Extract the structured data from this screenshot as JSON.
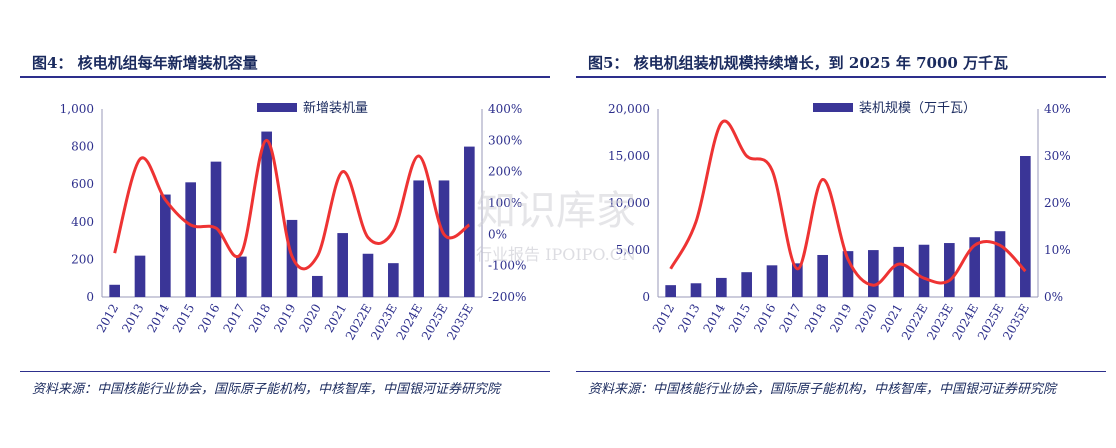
{
  "colors": {
    "bar": "#3a3597",
    "line": "#ee3333",
    "axis_text": "#2d2f8c",
    "title": "#1a2a5e"
  },
  "chart_data": [
    {
      "type": "bar",
      "title": "图4：  核电机组每年新增装机容量",
      "categories": [
        "2012",
        "2013",
        "2014",
        "2015",
        "2016",
        "2017",
        "2018",
        "2019",
        "2020",
        "2021",
        "2022E",
        "2023E",
        "2024E",
        "2025E",
        "2035E"
      ],
      "series": [
        {
          "name": "新增装机量",
          "type": "bar",
          "axis": "left",
          "values": [
            65,
            220,
            545,
            610,
            720,
            215,
            880,
            410,
            112,
            340,
            230,
            180,
            620,
            620,
            800
          ]
        },
        {
          "type": "line",
          "axis": "right",
          "values": [
            -60,
            240,
            110,
            30,
            20,
            -60,
            300,
            -70,
            -70,
            200,
            -10,
            10,
            250,
            0,
            30
          ]
        }
      ],
      "ylim": [
        0,
        1000
      ],
      "yticks": [
        "0",
        "200",
        "400",
        "600",
        "800",
        "1,000"
      ],
      "y2lim": [
        -200,
        400
      ],
      "y2ticks": [
        "-200%",
        "-100%",
        "0%",
        "100%",
        "200%",
        "300%",
        "400%"
      ],
      "legend_position": "top"
    },
    {
      "type": "bar",
      "title": "图5：  核电机组装机规模持续增长，到 2025 年 7000 万千瓦",
      "categories": [
        "2012",
        "2013",
        "2014",
        "2015",
        "2016",
        "2017",
        "2018",
        "2019",
        "2020",
        "2021",
        "2022E",
        "2023E",
        "2024E",
        "2025E",
        "2035E"
      ],
      "series": [
        {
          "name": "装机规模（万千瓦）",
          "type": "bar",
          "axis": "left",
          "values": [
            1260,
            1460,
            2030,
            2640,
            3370,
            3580,
            4470,
            4880,
            4990,
            5330,
            5560,
            5740,
            6360,
            7000,
            15000
          ]
        },
        {
          "type": "line",
          "axis": "right",
          "values": [
            6,
            16,
            37,
            30,
            27,
            6,
            25,
            8,
            2.5,
            7,
            4,
            3.5,
            11,
            11,
            5.5
          ]
        }
      ],
      "ylim": [
        0,
        20000
      ],
      "yticks": [
        "0",
        "5,000",
        "10,000",
        "15,000",
        "20,000"
      ],
      "y2lim": [
        0,
        40
      ],
      "y2ticks": [
        "0%",
        "10%",
        "20%",
        "30%",
        "40%"
      ],
      "legend_position": "top"
    }
  ],
  "sources": [
    "资料来源：中国核能行业协会，国际原子能机构，中核智库，中国银河证券研究院",
    "资料来源：中国核能行业协会，国际原子能机构，中核智库，中国银河证券研究院"
  ],
  "watermark": {
    "main": "知识库家",
    "sub": "行业报告 IPOIPO.CN"
  }
}
